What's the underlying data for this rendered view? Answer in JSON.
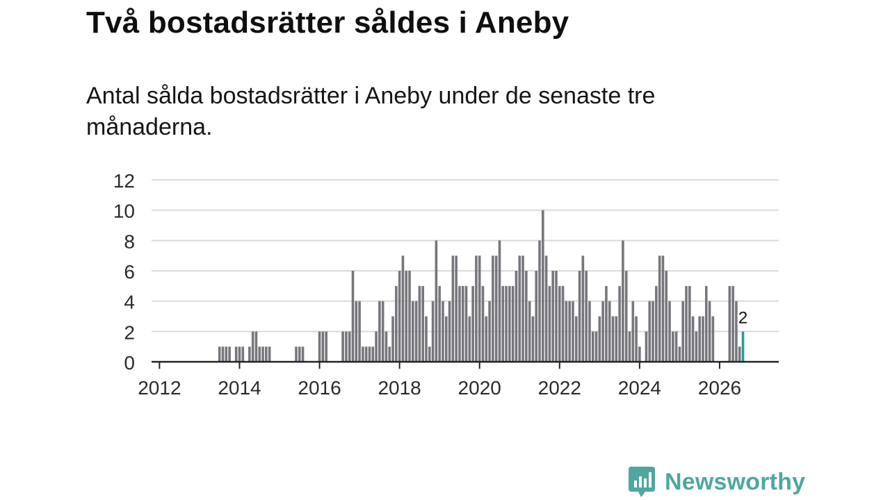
{
  "header": {
    "title": "Två bostadsrätter såldes i Aneby",
    "subtitle": "Antal sålda bostadsrätter i Aneby under de senaste tre månaderna."
  },
  "brand": {
    "name": "Newsworthy",
    "color": "#4fa7a0"
  },
  "chart_data": {
    "type": "bar",
    "title": "Två bostadsrätter såldes i Aneby",
    "subtitle": "Antal sålda bostadsrätter i Aneby under de senaste tre månaderna.",
    "xlabel": "",
    "ylabel": "",
    "ylim": [
      0,
      12
    ],
    "yticks": [
      0,
      2,
      4,
      6,
      8,
      10,
      12
    ],
    "xticks": [
      "2012",
      "2014",
      "2016",
      "2018",
      "2020",
      "2022",
      "2024",
      "2026"
    ],
    "grid": true,
    "start": "2011-11",
    "colors": {
      "bar": "#77767c",
      "highlight": "#1f9f9a",
      "grid": "#d9d9d9",
      "axis": "#222222"
    },
    "highlight_label": "2",
    "values": [
      0,
      0,
      0,
      0,
      0,
      0,
      0,
      0,
      0,
      0,
      0,
      0,
      0,
      0,
      0,
      0,
      0,
      0,
      0,
      0,
      1,
      1,
      1,
      1,
      0,
      1,
      1,
      1,
      0,
      1,
      2,
      2,
      1,
      1,
      1,
      1,
      0,
      0,
      0,
      0,
      0,
      0,
      0,
      1,
      1,
      1,
      0,
      0,
      0,
      0,
      2,
      2,
      2,
      0,
      0,
      0,
      0,
      2,
      2,
      2,
      6,
      4,
      4,
      1,
      1,
      1,
      1,
      2,
      4,
      4,
      2,
      1,
      3,
      5,
      6,
      7,
      6,
      6,
      4,
      4,
      5,
      5,
      3,
      1,
      4,
      8,
      5,
      4,
      3,
      4,
      7,
      7,
      5,
      5,
      5,
      3,
      5,
      7,
      7,
      5,
      3,
      4,
      7,
      7,
      8,
      5,
      5,
      5,
      5,
      6,
      7,
      7,
      6,
      4,
      3,
      6,
      8,
      10,
      7,
      5,
      6,
      6,
      5,
      5,
      4,
      4,
      4,
      3,
      6,
      7,
      6,
      4,
      2,
      2,
      3,
      4,
      5,
      4,
      3,
      3,
      5,
      8,
      6,
      2,
      4,
      3,
      1,
      0,
      2,
      4,
      4,
      5,
      7,
      7,
      6,
      4,
      2,
      2,
      1,
      4,
      5,
      5,
      3,
      2,
      3,
      3,
      5,
      4,
      3,
      0,
      0,
      0,
      0,
      5,
      5,
      4,
      1,
      2
    ]
  }
}
